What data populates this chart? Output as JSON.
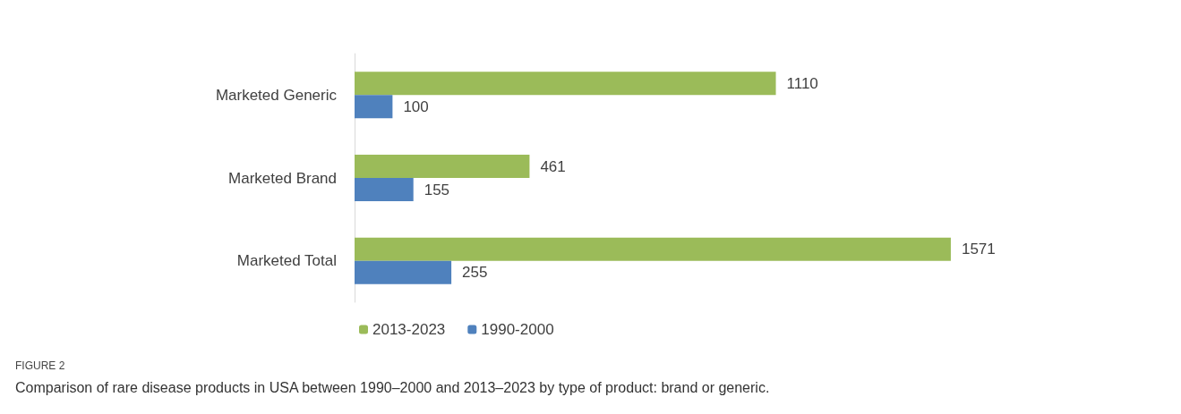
{
  "chart_data": {
    "type": "bar",
    "orientation": "horizontal",
    "title": "FIGURE 2",
    "subtitle": "Comparison of rare disease products in USA between 1990–2000 and 2013–2023 by type of product: brand or generic.",
    "categories": [
      "Marketed Generic",
      "Marketed Brand",
      "Marketed Total"
    ],
    "series": [
      {
        "name": "2013-2023",
        "color": "#9bbb59",
        "values": [
          1110,
          461,
          1571
        ]
      },
      {
        "name": "1990-2000",
        "color": "#4f81bd",
        "values": [
          100,
          155,
          255
        ]
      }
    ],
    "data_labels": true,
    "legend": "bottom",
    "tick_labels": "y"
  }
}
